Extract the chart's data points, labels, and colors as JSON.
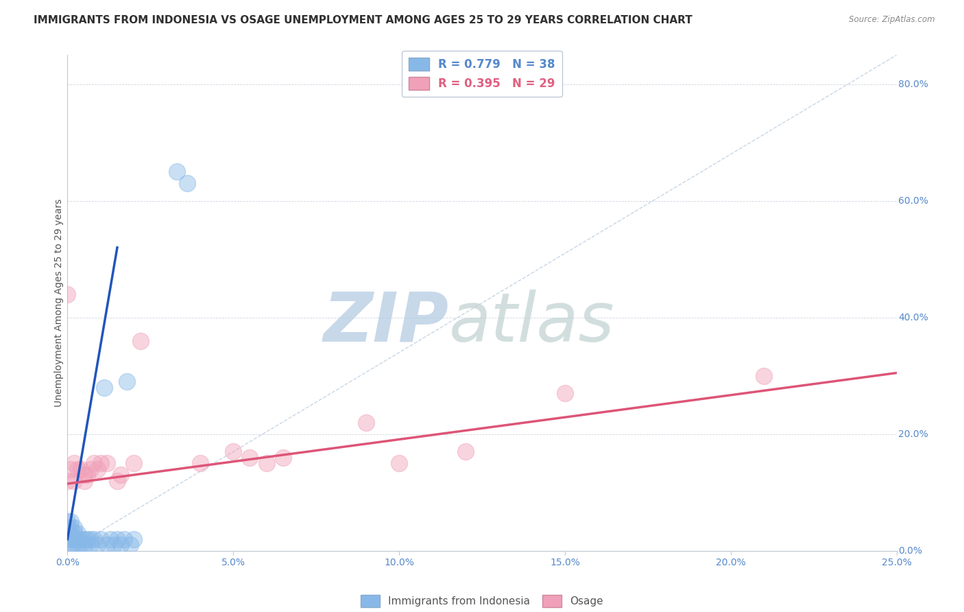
{
  "title": "IMMIGRANTS FROM INDONESIA VS OSAGE UNEMPLOYMENT AMONG AGES 25 TO 29 YEARS CORRELATION CHART",
  "source": "Source: ZipAtlas.com",
  "ylabel": "Unemployment Among Ages 25 to 29 years",
  "xlim": [
    0,
    0.25
  ],
  "ylim": [
    0,
    0.85
  ],
  "xticks": [
    0.0,
    0.05,
    0.1,
    0.15,
    0.2,
    0.25
  ],
  "xticklabels": [
    "0.0%",
    "5.0%",
    "10.0%",
    "15.0%",
    "20.0%",
    "25.0%"
  ],
  "yticks": [
    0.0,
    0.2,
    0.4,
    0.6,
    0.8
  ],
  "yticklabels": [
    "0.0%",
    "20.0%",
    "40.0%",
    "60.0%",
    "80.0%"
  ],
  "legend_entries": [
    {
      "label": "R = 0.779   N = 38",
      "color": "#a8c8f0"
    },
    {
      "label": "R = 0.395   N = 29",
      "color": "#f0a8b8"
    }
  ],
  "legend_bottom": [
    {
      "label": "Immigrants from Indonesia",
      "color": "#a8c8f0"
    },
    {
      "label": "Osage",
      "color": "#f0b8c8"
    }
  ],
  "blue_scatter_x": [
    0.0,
    0.0,
    0.0,
    0.0,
    0.001,
    0.001,
    0.001,
    0.001,
    0.001,
    0.002,
    0.002,
    0.002,
    0.002,
    0.003,
    0.003,
    0.003,
    0.004,
    0.004,
    0.005,
    0.005,
    0.006,
    0.007,
    0.007,
    0.008,
    0.009,
    0.01,
    0.011,
    0.012,
    0.013,
    0.014,
    0.015,
    0.016,
    0.017,
    0.018,
    0.019,
    0.02,
    0.033,
    0.036
  ],
  "blue_scatter_y": [
    0.02,
    0.03,
    0.04,
    0.05,
    0.01,
    0.02,
    0.03,
    0.04,
    0.05,
    0.01,
    0.02,
    0.03,
    0.04,
    0.01,
    0.02,
    0.03,
    0.01,
    0.02,
    0.01,
    0.02,
    0.02,
    0.01,
    0.02,
    0.02,
    0.01,
    0.02,
    0.28,
    0.01,
    0.02,
    0.01,
    0.02,
    0.01,
    0.02,
    0.29,
    0.01,
    0.02,
    0.65,
    0.63
  ],
  "pink_scatter_x": [
    0.0,
    0.0,
    0.001,
    0.002,
    0.002,
    0.003,
    0.004,
    0.005,
    0.005,
    0.006,
    0.007,
    0.008,
    0.009,
    0.01,
    0.012,
    0.015,
    0.016,
    0.02,
    0.022,
    0.04,
    0.05,
    0.055,
    0.06,
    0.065,
    0.09,
    0.1,
    0.12,
    0.15,
    0.21
  ],
  "pink_scatter_y": [
    0.44,
    0.12,
    0.14,
    0.12,
    0.15,
    0.14,
    0.14,
    0.12,
    0.13,
    0.13,
    0.14,
    0.15,
    0.14,
    0.15,
    0.15,
    0.12,
    0.13,
    0.15,
    0.36,
    0.15,
    0.17,
    0.16,
    0.15,
    0.16,
    0.22,
    0.15,
    0.17,
    0.27,
    0.3
  ],
  "blue_line_x": [
    0.0,
    0.015
  ],
  "blue_line_y": [
    0.02,
    0.52
  ],
  "pink_line_x": [
    0.0,
    0.25
  ],
  "pink_line_y": [
    0.115,
    0.305
  ],
  "diag_line_x": [
    0.0,
    0.25
  ],
  "diag_line_y": [
    0.0,
    0.85
  ],
  "watermark_zip": "ZIP",
  "watermark_atlas": "atlas",
  "watermark_color_zip": "#b0c8e0",
  "watermark_color_atlas": "#c0d0d0",
  "background_color": "#ffffff",
  "blue_color": "#88b8e8",
  "pink_color": "#f0a0b8",
  "blue_line_color": "#2255bb",
  "pink_line_color": "#dd5577",
  "diag_line_color": "#b8cce0",
  "title_fontsize": 11,
  "axis_label_fontsize": 10,
  "tick_fontsize": 10,
  "tick_color": "#5588cc"
}
